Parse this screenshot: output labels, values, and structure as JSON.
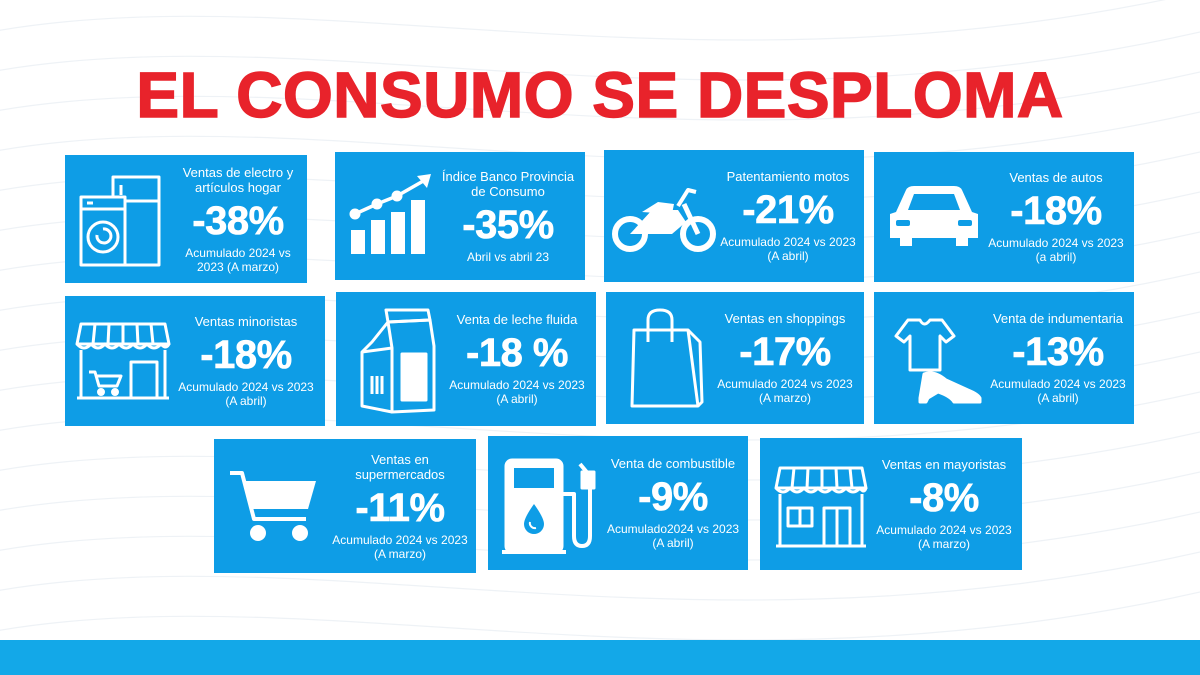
{
  "title": "EL CONSUMO SE DESPLOMA",
  "accent_color": "#e8232b",
  "card_color": "#0e9de6",
  "cards": [
    {
      "label": "Ventas de electro y artículos hogar",
      "value": "-38%",
      "note": "Acumulado 2024 vs 2023 (A marzo)",
      "icon": "appliances-icon"
    },
    {
      "label": "Índice Banco Provincia de Consumo",
      "value": "-35%",
      "note": "Abril vs abril 23",
      "icon": "growth-chart-icon"
    },
    {
      "label": "Patentamiento motos",
      "value": "-21%",
      "note": "Acumulado 2024 vs 2023 (A abril)",
      "icon": "motorcycle-icon"
    },
    {
      "label": "Ventas de autos",
      "value": "-18%",
      "note": "Acumulado 2024 vs 2023 (a abril)",
      "icon": "car-icon"
    },
    {
      "label": "Ventas minoristas",
      "value": "-18%",
      "note": "Acumulado 2024 vs 2023 (A abril)",
      "icon": "storefront-icon"
    },
    {
      "label": "Venta de leche fluida",
      "value": "-18 %",
      "note": "Acumulado 2024 vs 2023 (A abril)",
      "icon": "milk-carton-icon"
    },
    {
      "label": "Ventas en shoppings",
      "value": "-17%",
      "note": "Acumulado 2024 vs 2023 (A marzo)",
      "icon": "shopping-bag-icon"
    },
    {
      "label": "Venta de indumentaria",
      "value": "-13%",
      "note": "Acumulado 2024 vs 2023  (A abril)",
      "icon": "clothing-icon"
    },
    {
      "label": "Ventas en supermercados",
      "value": "-11%",
      "note": "Acumulado 2024 vs 2023 (A marzo)",
      "icon": "shopping-cart-icon"
    },
    {
      "label": "Venta de combustible",
      "value": "-9%",
      "note": "Acumulado2024 vs 2023 (A abril)",
      "icon": "fuel-pump-icon"
    },
    {
      "label": "Ventas en mayoristas",
      "value": "-8%",
      "note": "Acumulado 2024 vs 2023 (A marzo)",
      "icon": "wholesale-store-icon"
    }
  ]
}
